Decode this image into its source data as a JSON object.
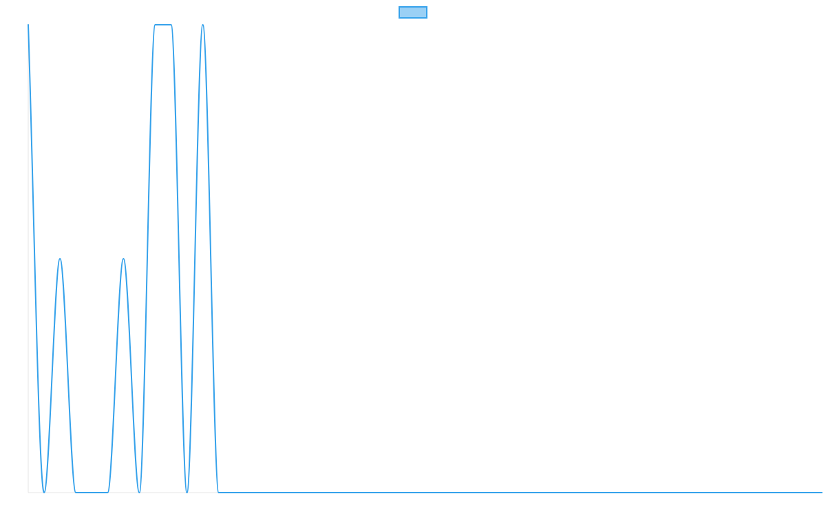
{
  "chart_data": {
    "type": "line",
    "title": "",
    "xlabel": "",
    "ylabel": "",
    "x": [
      0,
      1,
      2,
      3,
      4,
      5,
      6,
      7,
      8,
      9,
      10,
      11,
      12,
      13,
      14,
      15,
      16,
      17,
      18,
      19,
      20,
      21,
      22,
      23,
      24,
      25,
      26,
      27,
      28,
      29,
      30,
      31,
      32,
      33,
      34,
      35,
      36,
      37,
      38,
      39,
      40,
      41,
      42,
      43,
      44,
      45,
      46,
      47,
      48,
      49,
      50
    ],
    "ylim": [
      0,
      2
    ],
    "xlim": [
      0,
      50
    ],
    "curve": "monotone",
    "grid": false,
    "legend": "top-center",
    "series": [
      {
        "name": "",
        "color": "#36a2eb",
        "fill": "#9ad0f5",
        "values": [
          2,
          0,
          1,
          0,
          0,
          0,
          1,
          0,
          2,
          2,
          0,
          2,
          0,
          0,
          0,
          0,
          0,
          0,
          0,
          0,
          0,
          0,
          0,
          0,
          0,
          0,
          0,
          0,
          0,
          0,
          0,
          0,
          0,
          0,
          0,
          0,
          0,
          0,
          0,
          0,
          0,
          0,
          0,
          0,
          0,
          0,
          0,
          0,
          0,
          0,
          0
        ]
      }
    ]
  }
}
